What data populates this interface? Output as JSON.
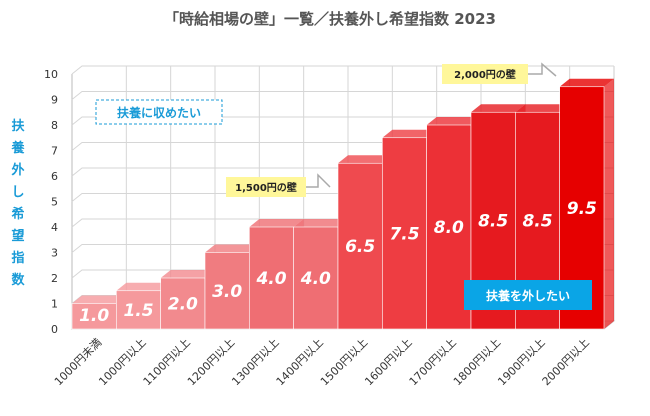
{
  "chart_data": {
    "type": "bar",
    "title": "「時給相場の壁」一覧／扶養外し希望指数 2023",
    "ylabel": "扶養外し希望指数",
    "xlabel": "",
    "ylim": [
      0,
      10
    ],
    "yticks": [
      0,
      1,
      2,
      3,
      4,
      5,
      6,
      7,
      8,
      9,
      10
    ],
    "grid": true,
    "categories": [
      "1000円未満",
      "1000円以上",
      "1100円以上",
      "1200円以上",
      "1300円以上",
      "1400円以上",
      "1500円以上",
      "1600円以上",
      "1700円以上",
      "1800円以上",
      "1900円以上",
      "2000円以上"
    ],
    "values": [
      1.0,
      1.5,
      2.0,
      3.0,
      4.0,
      4.0,
      6.5,
      7.5,
      8.0,
      8.5,
      8.5,
      9.5
    ],
    "value_labels": [
      "1.0",
      "1.5",
      "2.0",
      "3.0",
      "4.0",
      "4.0",
      "6.5",
      "7.5",
      "8.0",
      "8.5",
      "8.5",
      "9.5"
    ],
    "colors": [
      "#f5999c",
      "#f5999c",
      "#f28a8e",
      "#f07c80",
      "#ef6e73",
      "#ef6e73",
      "#ef4a4f",
      "#ee3d42",
      "#ec3036",
      "#e61a1f",
      "#e61a1f",
      "#e60000"
    ],
    "annotations": {
      "wall_1500": "1,500円の壁",
      "wall_2000": "2,000円の壁",
      "keep_dependent": "扶養に収めたい",
      "leave_dependent": "扶養を外したい"
    }
  }
}
